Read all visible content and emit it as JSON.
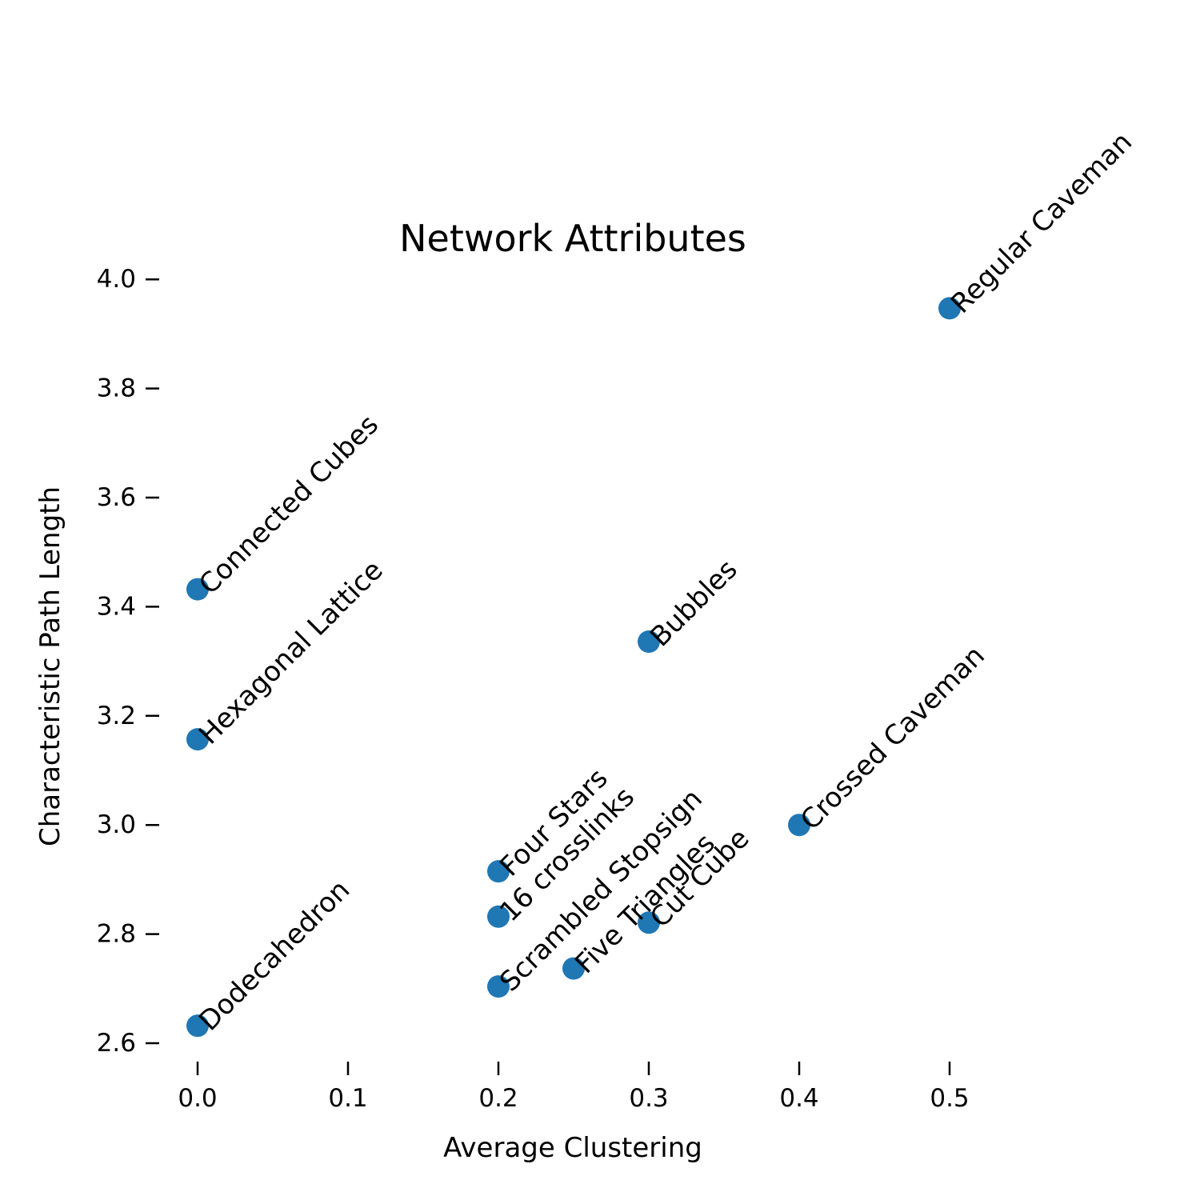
{
  "chart_data": {
    "type": "scatter",
    "title": "Network Attributes",
    "xlabel": "Average Clustering",
    "ylabel": "Characteristic Path Length",
    "xlim": [
      -0.025,
      0.625
    ],
    "ylim": [
      2.55,
      4.0
    ],
    "xticks": [
      0.0,
      0.1,
      0.2,
      0.3,
      0.4,
      0.5
    ],
    "xtick_labels": [
      "0.0",
      "0.1",
      "0.2",
      "0.3",
      "0.4",
      "0.5"
    ],
    "yticks": [
      2.6,
      2.8,
      3.0,
      3.2,
      3.4,
      3.6,
      3.8,
      4.0
    ],
    "ytick_labels": [
      "2.6",
      "2.8",
      "3.0",
      "3.2",
      "3.4",
      "3.6",
      "3.8",
      "4.0"
    ],
    "grid": false,
    "marker_color": "#1f77b4",
    "points": [
      {
        "label": "Regular Caveman",
        "x": 0.5,
        "y": 3.947
      },
      {
        "label": "Connected Cubes",
        "x": 0.0,
        "y": 3.432
      },
      {
        "label": "Hexagonal Lattice",
        "x": 0.0,
        "y": 3.157
      },
      {
        "label": "Bubbles",
        "x": 0.3,
        "y": 3.336
      },
      {
        "label": "Crossed Caveman",
        "x": 0.4,
        "y": 3.0
      },
      {
        "label": "Four Stars",
        "x": 0.2,
        "y": 2.915
      },
      {
        "label": "16 crosslinks",
        "x": 0.2,
        "y": 2.832
      },
      {
        "label": "Scrambled Stopsign",
        "x": 0.2,
        "y": 2.704
      },
      {
        "label": "Five Triangles",
        "x": 0.25,
        "y": 2.737
      },
      {
        "label": "Cut Cube",
        "x": 0.3,
        "y": 2.821
      },
      {
        "label": "Dodecahedron",
        "x": 0.0,
        "y": 2.632
      }
    ]
  }
}
